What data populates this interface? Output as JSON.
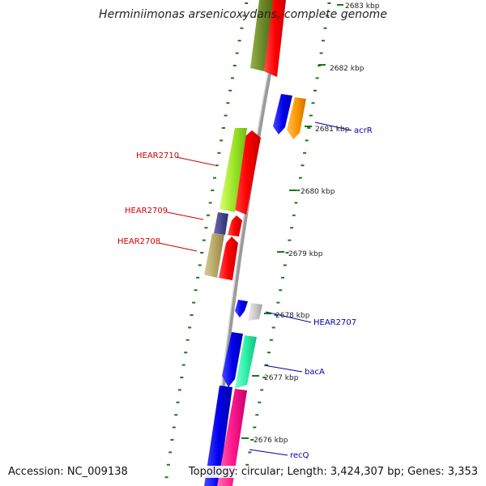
{
  "title": "Herminiimonas arsenicoxydans, complete genome",
  "accession": "Accession: NC_009138",
  "topology": "Topology: circular; Length: 3,424,307 bp; Genes: 3,353",
  "ticks": [
    "2683 kbp",
    "2682 kbp",
    "2681 kbp",
    "2680 kbp",
    "2679 kbp",
    "2678 kbp",
    "2677 kbp",
    "2676 kbp"
  ],
  "genes": {
    "hear2710": "HEAR2710",
    "hear2709": "HEAR2709",
    "hear2708": "HEAR2708",
    "acrR": "acrR",
    "hear2707": "HEAR2707",
    "bacA": "bacA",
    "recQ": "recQ"
  },
  "colors": {
    "cds": "#ff0000",
    "label_red": "#cc0000",
    "label_blue": "#0000aa",
    "tick": "#1a7a1a",
    "backbone": "#888888"
  }
}
